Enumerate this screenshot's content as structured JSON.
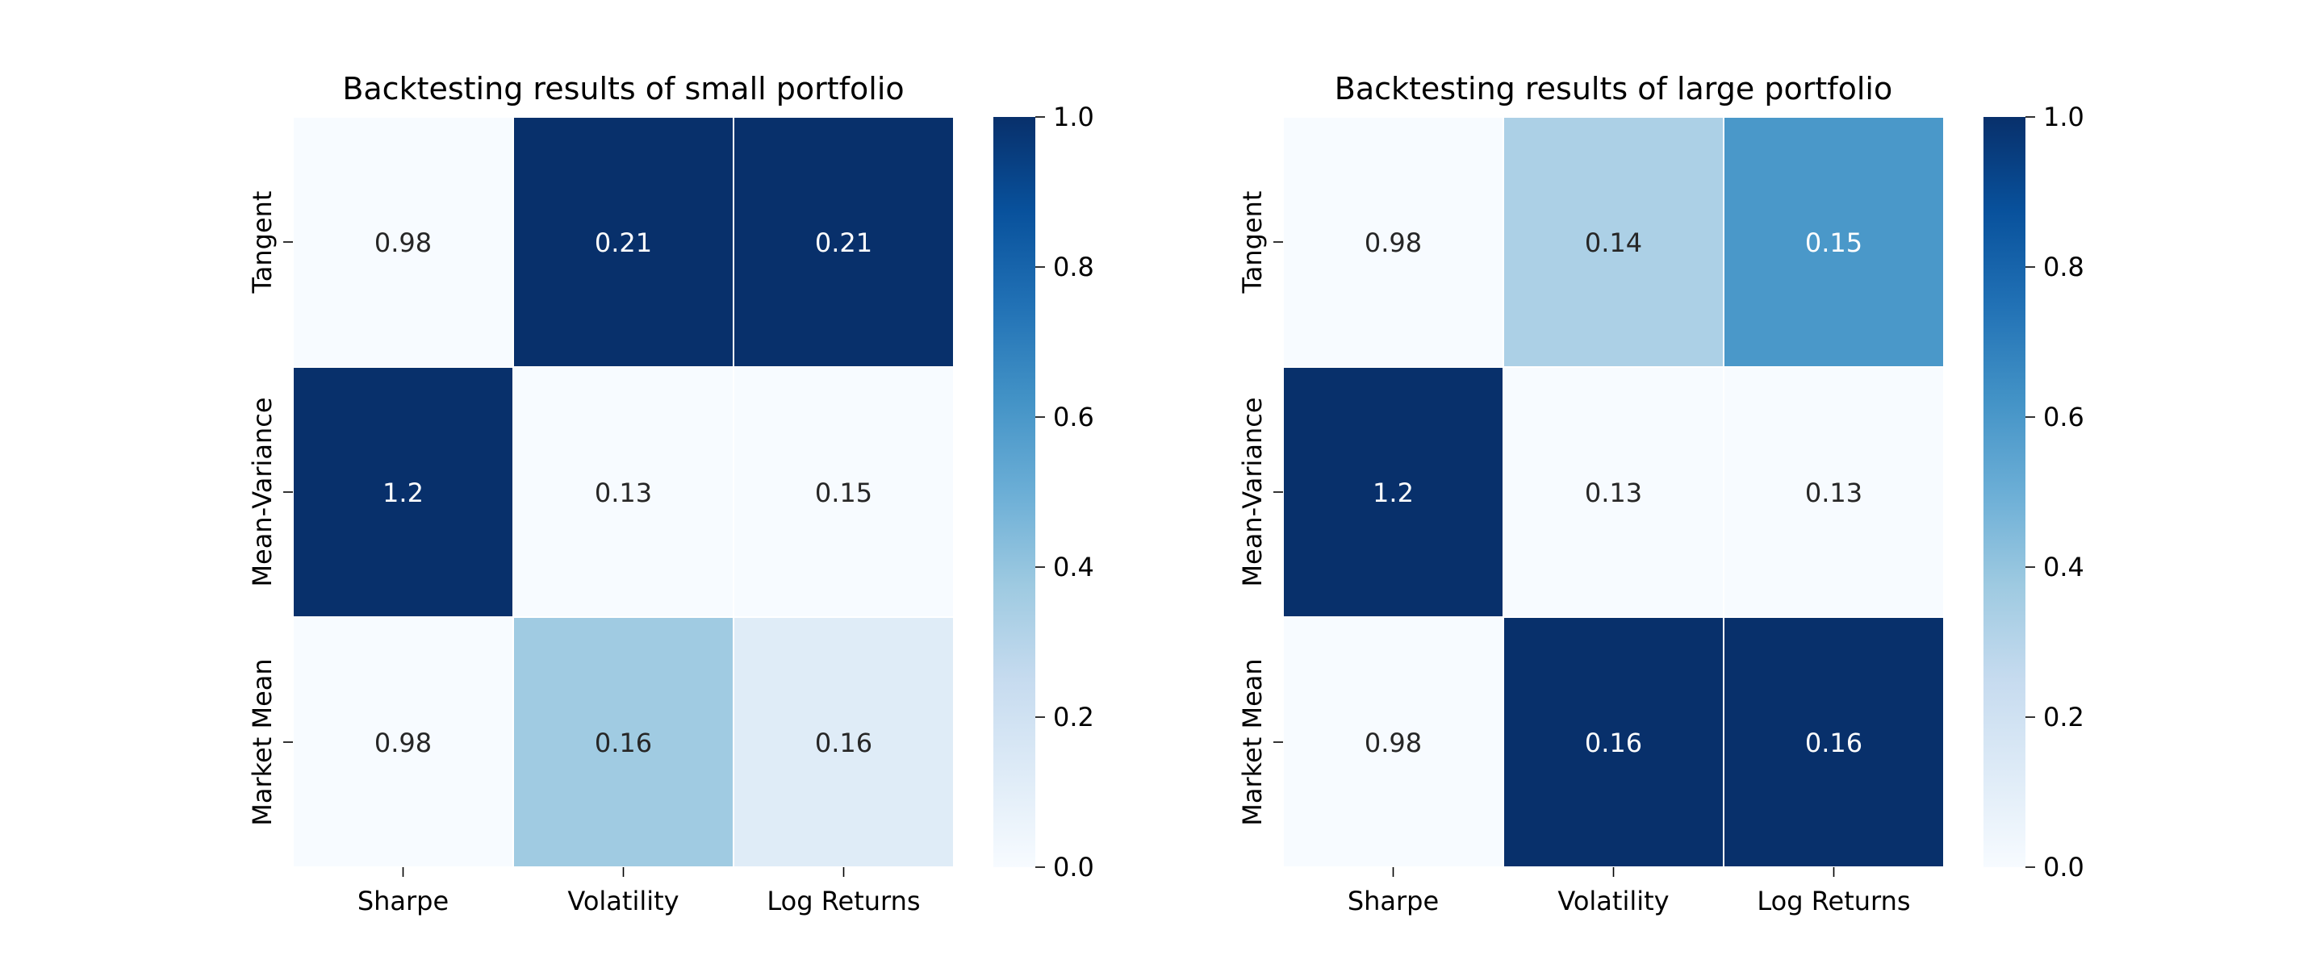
{
  "chart_data": [
    {
      "type": "heatmap",
      "title": "Backtesting results of small portfolio",
      "xlabel": "",
      "ylabel": "",
      "x_categories": [
        "Sharpe",
        "Volatility",
        "Log Returns"
      ],
      "y_categories": [
        "Tangent",
        "Mean-Variance",
        "Market Mean"
      ],
      "annotations": [
        [
          "0.98",
          "0.21",
          "0.21"
        ],
        [
          "1.2",
          "0.13",
          "0.15"
        ],
        [
          "0.98",
          "0.16",
          "0.16"
        ]
      ],
      "color_intensity": [
        [
          0.0,
          1.0,
          1.0
        ],
        [
          1.0,
          0.0,
          0.0
        ],
        [
          0.0,
          0.37,
          0.12
        ]
      ],
      "colorbar": {
        "range": [
          0.0,
          1.0
        ],
        "ticks": [
          "0.0",
          "0.2",
          "0.4",
          "0.6",
          "0.8",
          "1.0"
        ]
      },
      "colormap": "Blues"
    },
    {
      "type": "heatmap",
      "title": "Backtesting results of large portfolio",
      "xlabel": "",
      "ylabel": "",
      "x_categories": [
        "Sharpe",
        "Volatility",
        "Log Returns"
      ],
      "y_categories": [
        "Tangent",
        "Mean-Variance",
        "Market Mean"
      ],
      "annotations": [
        [
          "0.98",
          "0.14",
          "0.15"
        ],
        [
          "1.2",
          "0.13",
          "0.13"
        ],
        [
          "0.98",
          "0.16",
          "0.16"
        ]
      ],
      "color_intensity": [
        [
          0.0,
          0.33,
          0.6
        ],
        [
          1.0,
          0.0,
          0.0
        ],
        [
          0.0,
          1.0,
          1.0
        ]
      ],
      "colorbar": {
        "range": [
          0.0,
          1.0
        ],
        "ticks": [
          "0.0",
          "0.2",
          "0.4",
          "0.6",
          "0.8",
          "1.0"
        ]
      },
      "colormap": "Blues"
    }
  ]
}
